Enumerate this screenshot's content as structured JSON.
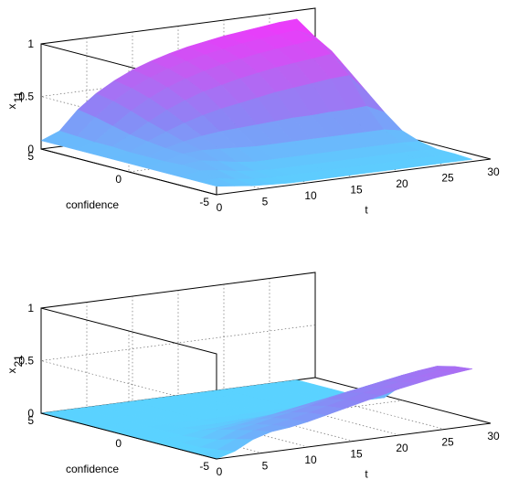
{
  "figure": {
    "colormap": [
      "#5ad2ff",
      "#8a86f5",
      "#c25cf2",
      "#ff2bff"
    ]
  },
  "chart_data": [
    {
      "type": "surface",
      "x_name": "t",
      "y_name": "confidence",
      "z_name": "x",
      "z_subscript": "11",
      "xlim": [
        0,
        30
      ],
      "ylim": [
        -5,
        5
      ],
      "zlim": [
        0,
        1
      ],
      "x_ticks": [
        "0",
        "5",
        "10",
        "15",
        "20",
        "25",
        "30"
      ],
      "y_ticks": [
        "-5",
        "0",
        "5"
      ],
      "z_ticks": [
        "0",
        "0.5",
        "1"
      ],
      "grid": true,
      "t_values": [
        0,
        2,
        4,
        6,
        8,
        10,
        12,
        14,
        16,
        18,
        20,
        22,
        24,
        26,
        28
      ],
      "confidence_values": [
        5,
        4,
        3,
        2,
        1,
        0,
        -1,
        -2,
        -3,
        -4,
        -5
      ],
      "z_values": [
        [
          0.08,
          0.15,
          0.33,
          0.46,
          0.56,
          0.64,
          0.7,
          0.75,
          0.79,
          0.82,
          0.85,
          0.87,
          0.89,
          0.91,
          0.92
        ],
        [
          0.08,
          0.14,
          0.3,
          0.43,
          0.53,
          0.61,
          0.67,
          0.72,
          0.76,
          0.79,
          0.82,
          0.84,
          0.86,
          0.88,
          0.8
        ],
        [
          0.08,
          0.13,
          0.26,
          0.38,
          0.48,
          0.56,
          0.62,
          0.67,
          0.71,
          0.74,
          0.77,
          0.79,
          0.81,
          0.83,
          0.7
        ],
        [
          0.08,
          0.13,
          0.22,
          0.32,
          0.41,
          0.48,
          0.54,
          0.58,
          0.62,
          0.65,
          0.68,
          0.7,
          0.72,
          0.74,
          0.55
        ],
        [
          0.08,
          0.12,
          0.2,
          0.27,
          0.33,
          0.38,
          0.42,
          0.45,
          0.48,
          0.51,
          0.53,
          0.55,
          0.57,
          0.58,
          0.4
        ],
        [
          0.08,
          0.12,
          0.18,
          0.22,
          0.25,
          0.27,
          0.28,
          0.29,
          0.3,
          0.31,
          0.31,
          0.32,
          0.32,
          0.33,
          0.25
        ],
        [
          0.08,
          0.12,
          0.17,
          0.18,
          0.17,
          0.16,
          0.15,
          0.15,
          0.15,
          0.15,
          0.15,
          0.15,
          0.15,
          0.15,
          0.12
        ],
        [
          0.08,
          0.13,
          0.15,
          0.12,
          0.09,
          0.07,
          0.07,
          0.07,
          0.07,
          0.07,
          0.07,
          0.07,
          0.07,
          0.07,
          0.06
        ],
        [
          0.08,
          0.12,
          0.1,
          0.07,
          0.05,
          0.04,
          0.04,
          0.04,
          0.04,
          0.04,
          0.04,
          0.04,
          0.04,
          0.04,
          0.03
        ],
        [
          0.08,
          0.09,
          0.06,
          0.04,
          0.03,
          0.03,
          0.03,
          0.03,
          0.03,
          0.03,
          0.03,
          0.03,
          0.03,
          0.03,
          0.03
        ],
        [
          0.08,
          0.06,
          0.04,
          0.03,
          0.02,
          0.02,
          0.02,
          0.02,
          0.02,
          0.02,
          0.02,
          0.02,
          0.02,
          0.02,
          0.02
        ]
      ]
    },
    {
      "type": "surface",
      "x_name": "t",
      "y_name": "confidence",
      "z_name": "x",
      "z_subscript": "21",
      "xlim": [
        0,
        30
      ],
      "ylim": [
        -5,
        5
      ],
      "zlim": [
        0,
        1
      ],
      "x_ticks": [
        "0",
        "5",
        "10",
        "15",
        "20",
        "25",
        "30"
      ],
      "y_ticks": [
        "-5",
        "0",
        "5"
      ],
      "z_ticks": [
        "0",
        "0.5",
        "1"
      ],
      "grid": true,
      "t_values": [
        0,
        2,
        4,
        6,
        8,
        10,
        12,
        14,
        16,
        18,
        20,
        22,
        24,
        26,
        28
      ],
      "confidence_values": [
        5,
        4,
        3,
        2,
        1,
        0,
        -1,
        -2,
        -3,
        -4,
        -5
      ],
      "z_values": [
        [
          0.0,
          0.0,
          0.0,
          0.0,
          0.0,
          0.0,
          0.0,
          0.0,
          0.0,
          0.0,
          0.0,
          0.0,
          0.0,
          0.0,
          0.0
        ],
        [
          0.0,
          0.0,
          0.0,
          0.0,
          0.0,
          0.0,
          0.0,
          0.0,
          0.0,
          0.0,
          0.0,
          0.0,
          0.0,
          0.0,
          0.0
        ],
        [
          0.0,
          0.0,
          0.0,
          0.0,
          0.0,
          0.0,
          0.0,
          0.0,
          0.0,
          0.0,
          0.0,
          0.0,
          0.0,
          0.0,
          0.0
        ],
        [
          0.0,
          0.0,
          0.0,
          0.0,
          0.0,
          0.0,
          0.0,
          0.0,
          0.0,
          0.0,
          0.0,
          0.0,
          0.0,
          0.0,
          0.0
        ],
        [
          0.0,
          0.0,
          0.0,
          0.0,
          0.0,
          0.0,
          0.0,
          0.0,
          0.0,
          0.0,
          0.0,
          0.0,
          0.0,
          0.0,
          0.0
        ],
        [
          0.0,
          0.0,
          0.0,
          0.01,
          0.01,
          0.01,
          0.02,
          0.02,
          0.03,
          0.03,
          0.04,
          0.04,
          0.05,
          0.05,
          0.05
        ],
        [
          0.0,
          0.0,
          0.0,
          0.03,
          0.04,
          0.06,
          0.08,
          0.09,
          0.11,
          0.13,
          0.14,
          0.16,
          0.18,
          0.2,
          0.21
        ],
        [
          0.0,
          0.0,
          0.02,
          0.08,
          0.1,
          0.13,
          0.16,
          0.19,
          0.22,
          0.25,
          0.28,
          0.31,
          0.34,
          0.37,
          0.39
        ],
        [
          0.0,
          0.0,
          0.05,
          0.12,
          0.15,
          0.19,
          0.22,
          0.26,
          0.3,
          0.34,
          0.37,
          0.4,
          0.43,
          0.46,
          0.48
        ],
        [
          0.0,
          0.02,
          0.1,
          0.16,
          0.19,
          0.22,
          0.26,
          0.3,
          0.34,
          0.38,
          0.41,
          0.44,
          0.47,
          0.5,
          0.52
        ],
        [
          0.0,
          0.05,
          0.14,
          0.19,
          0.21,
          0.24,
          0.28,
          0.32,
          0.36,
          0.4,
          0.44,
          0.47,
          0.5,
          0.52,
          0.54
        ]
      ]
    }
  ]
}
